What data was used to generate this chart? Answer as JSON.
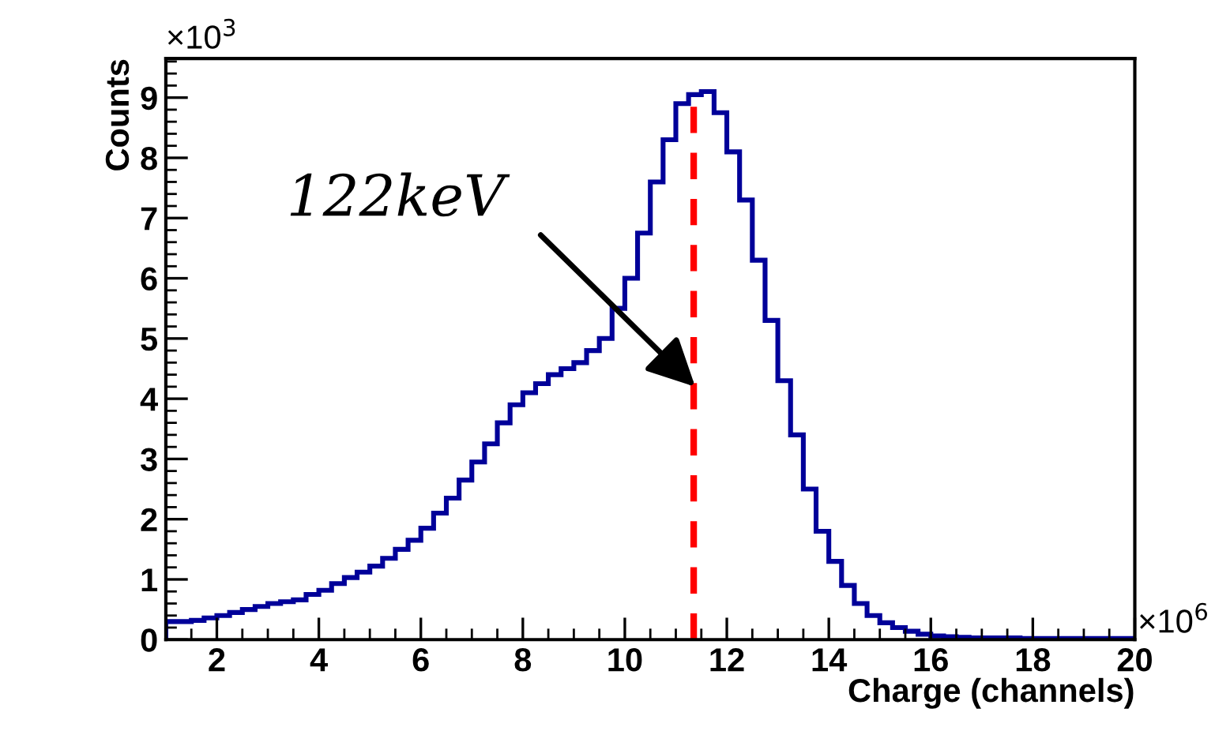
{
  "chart_data": {
    "type": "histogram",
    "xlabel": "Charge (channels)",
    "ylabel": "Counts",
    "bins": [
      1.0,
      1.25,
      1.5,
      1.75,
      2.0,
      2.25,
      2.5,
      2.75,
      3.0,
      3.25,
      3.5,
      3.75,
      4.0,
      4.25,
      4.5,
      4.75,
      5.0,
      5.25,
      5.5,
      5.75,
      6.0,
      6.25,
      6.5,
      6.75,
      7.0,
      7.25,
      7.5,
      7.75,
      8.0,
      8.25,
      8.5,
      8.75,
      9.0,
      9.25,
      9.5,
      9.75,
      10.0,
      10.25,
      10.5,
      10.75,
      11.0,
      11.25,
      11.5,
      11.75,
      12.0,
      12.25,
      12.5,
      12.75,
      13.0,
      13.25,
      13.5,
      13.75,
      14.0,
      14.25,
      14.5,
      14.75,
      15.0,
      15.25,
      15.5,
      15.75,
      16.0,
      16.25,
      16.5,
      16.75,
      17.0,
      17.25,
      17.5,
      17.75,
      18.0,
      18.25,
      18.5,
      18.75,
      19.0,
      19.25,
      19.5,
      19.75,
      20.0
    ],
    "values": [
      0.3,
      0.3,
      0.32,
      0.36,
      0.4,
      0.45,
      0.5,
      0.55,
      0.6,
      0.63,
      0.66,
      0.75,
      0.82,
      0.93,
      1.03,
      1.12,
      1.22,
      1.35,
      1.5,
      1.65,
      1.85,
      2.1,
      2.35,
      2.65,
      2.95,
      3.25,
      3.6,
      3.9,
      4.1,
      4.25,
      4.4,
      4.5,
      4.6,
      4.8,
      5.0,
      5.5,
      6.0,
      6.75,
      7.6,
      8.3,
      8.9,
      9.05,
      9.1,
      8.75,
      8.1,
      7.3,
      6.3,
      5.3,
      4.3,
      3.4,
      2.5,
      1.8,
      1.3,
      0.9,
      0.6,
      0.4,
      0.28,
      0.2,
      0.14,
      0.09,
      0.06,
      0.05,
      0.04,
      0.03,
      0.03,
      0.03,
      0.03,
      0.02,
      0.02,
      0.02,
      0.02,
      0.02,
      0.02,
      0.02,
      0.02,
      0.02
    ],
    "color": "#000099",
    "xlim": [
      1,
      20
    ],
    "ylim": [
      0,
      9.65
    ],
    "xticks": [
      2,
      4,
      6,
      8,
      10,
      12,
      14,
      16,
      18,
      20
    ],
    "yticks": [
      0,
      1,
      2,
      3,
      4,
      5,
      6,
      7,
      8,
      9
    ],
    "ref_lines": [
      {
        "axis": "x",
        "value": 11.35,
        "color": "#ff0000",
        "line_style": "dashed"
      }
    ],
    "annotations": [
      "×10$^{3}$",
      "×10$^{6}$",
      {
        "text": "122keV",
        "x": 11.38,
        "y": 4.2
      }
    ],
    "grid": false,
    "legend": false
  }
}
